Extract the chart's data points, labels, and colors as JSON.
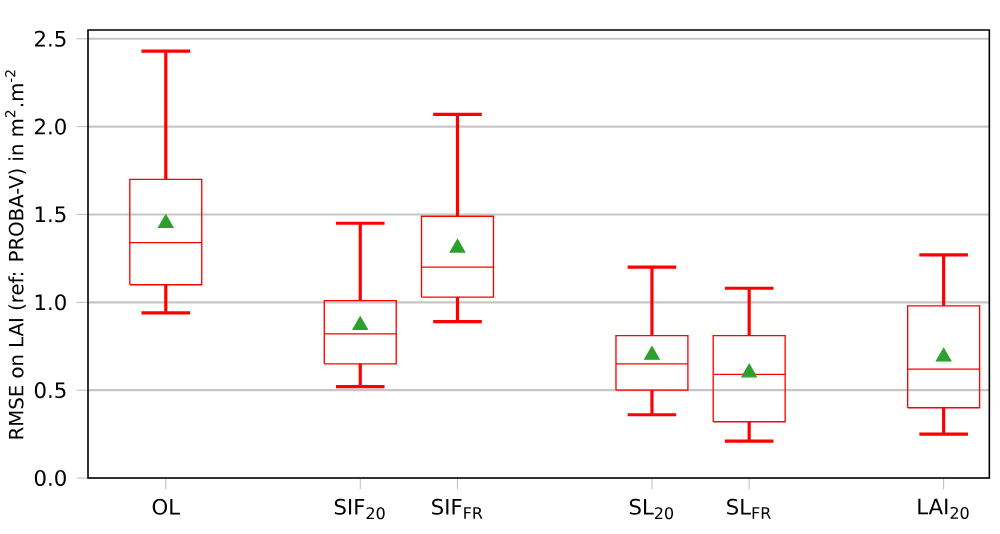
{
  "chart_data": {
    "type": "box",
    "ylabel": "RMSE on LAI (ref: PROBA-V) in m$^{2}$.m$^{-2}$",
    "categories": [
      "OL",
      null,
      "SIF$_{20}$",
      "SIF$_{FR}$",
      null,
      "SL$_{20}$",
      "SL$_{FR}$",
      null,
      "LAI$_{20}$"
    ],
    "series": [
      {
        "color": "#ff0000",
        "boxes": [
          {
            "low": 0.94,
            "q1": 1.1,
            "median": 1.34,
            "q3": 1.7,
            "high": 2.43
          },
          null,
          {
            "low": 0.52,
            "q1": 0.65,
            "median": 0.82,
            "q3": 1.01,
            "high": 1.45
          },
          {
            "low": 0.89,
            "q1": 1.03,
            "median": 1.2,
            "q3": 1.49,
            "high": 2.07
          },
          null,
          {
            "low": 0.36,
            "q1": 0.5,
            "median": 0.65,
            "q3": 0.81,
            "high": 1.2
          },
          {
            "low": 0.21,
            "q1": 0.32,
            "median": 0.59,
            "q3": 0.81,
            "high": 1.08
          },
          null,
          {
            "low": 0.25,
            "q1": 0.4,
            "median": 0.62,
            "q3": 0.98,
            "high": 1.27
          }
        ]
      },
      {
        "type": "scatter",
        "color": "#2ca02c",
        "marker": "triangle",
        "values": [
          1.45,
          null,
          0.87,
          1.31,
          null,
          0.7,
          0.6,
          null,
          0.69
        ]
      }
    ],
    "ylim": [
      0,
      2.55
    ],
    "yticks": [
      {
        "value": 0,
        "label": "0.0"
      },
      0.5,
      {
        "value": 1,
        "label": "1.0"
      },
      1.5,
      {
        "value": 2,
        "label": "2.0"
      },
      2.5
    ],
    "grid": "y"
  }
}
